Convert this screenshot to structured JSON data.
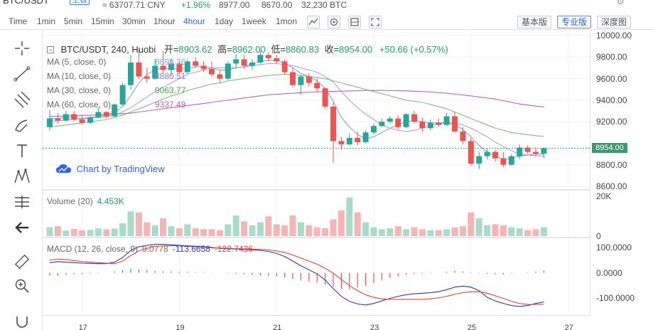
{
  "ticker": {
    "pair": "BTC/USDT",
    "badge": "主板",
    "cny": "≈ 63707.71 CNY",
    "change": "+1.96%",
    "high": "8977.00",
    "low": "8670.00",
    "volume": "32,230 BTC"
  },
  "toolbar": {
    "timeframes": [
      {
        "label": "Time",
        "active": false
      },
      {
        "label": "1min",
        "active": false
      },
      {
        "label": "5min",
        "active": false
      },
      {
        "label": "15min",
        "active": false
      },
      {
        "label": "30min",
        "active": false
      },
      {
        "label": "1hour",
        "active": false
      },
      {
        "label": "4hour",
        "active": true
      },
      {
        "label": "1day",
        "active": false
      },
      {
        "label": "1week",
        "active": false
      },
      {
        "label": "1mon",
        "active": false
      }
    ],
    "views": [
      {
        "label": "基本版",
        "active": false
      },
      {
        "label": "专业版",
        "active": true
      },
      {
        "label": "深度图",
        "active": false
      }
    ]
  },
  "legend": {
    "symbol": "BTC/USDT, 240, Huobi",
    "open_label": "开=",
    "open": "8903.62",
    "high_label": "高=",
    "high": "8962.00",
    "low_label": "低=",
    "low": "8860.83",
    "close_label": "收=",
    "close": "8954.00",
    "change": "+50.66 (+0.57%)",
    "ma": [
      {
        "label": "MA (5, close, 0)",
        "value": "8898.26"
      },
      {
        "label": "MA (10, close, 0)",
        "value": "8880.51"
      },
      {
        "label": "MA (30, close, 0)",
        "value": "9063.77"
      },
      {
        "label": "MA (60, close, 0)",
        "value": "9337.49"
      }
    ],
    "watermark": "Chart by TradingView",
    "volume_label": "Volume (20)",
    "volume_value": "4.453K",
    "macd_label": "MACD (12, 26, close, 9)",
    "macd_hist": "9.0778",
    "macd_line": "-113.6658",
    "macd_signal": "-122.7436"
  },
  "colors": {
    "up": "#26a69a",
    "down": "#ef5350",
    "up_vol": "#a8dcc8",
    "down_vol": "#f5b5b3",
    "ma5": "#8aa0d8",
    "ma10": "#b39ddb",
    "ma30": "#7cc07a",
    "ma60": "#c062b4",
    "macd": "#2b3ab8",
    "signal": "#e0463b",
    "accent": "#2962ff"
  },
  "chart_data": {
    "type": "candlestick",
    "price_axis": [
      "10000.00",
      "9800.00",
      "9600.00",
      "9400.00",
      "9200.00",
      "8800.00",
      "8600.00"
    ],
    "last_price": "8954.00",
    "ylim": [
      8580,
      10020
    ],
    "volume_axis": [
      "20K",
      "0"
    ],
    "macd_axis": [
      "100.0000",
      "0.0000",
      "-100.0000"
    ],
    "macd_ylim": [
      -160,
      130
    ],
    "x_labels": [
      "17",
      "19",
      "21",
      "23",
      "25",
      "27"
    ],
    "x_label_index": [
      4,
      16,
      28,
      40,
      52,
      64
    ],
    "candles": [
      [
        9150,
        9310,
        9120,
        9230
      ],
      [
        9230,
        9280,
        9180,
        9210
      ],
      [
        9210,
        9300,
        9200,
        9270
      ],
      [
        9270,
        9300,
        9210,
        9220
      ],
      [
        9220,
        9260,
        9170,
        9190
      ],
      [
        9190,
        9250,
        9180,
        9240
      ],
      [
        9240,
        9330,
        9230,
        9290
      ],
      [
        9290,
        9300,
        9230,
        9250
      ],
      [
        9250,
        9370,
        9240,
        9360
      ],
      [
        9360,
        9560,
        9350,
        9540
      ],
      [
        9540,
        9820,
        9500,
        9750
      ],
      [
        9750,
        9870,
        9600,
        9620
      ],
      [
        9620,
        9700,
        9560,
        9600
      ],
      [
        9600,
        9780,
        9590,
        9720
      ],
      [
        9720,
        9860,
        9650,
        9680
      ],
      [
        9680,
        9780,
        9620,
        9740
      ],
      [
        9740,
        9760,
        9640,
        9660
      ],
      [
        9660,
        9780,
        9640,
        9760
      ],
      [
        9760,
        9800,
        9700,
        9720
      ],
      [
        9720,
        9760,
        9660,
        9690
      ],
      [
        9690,
        9760,
        9620,
        9640
      ],
      [
        9640,
        9680,
        9560,
        9600
      ],
      [
        9600,
        9760,
        9590,
        9740
      ],
      [
        9740,
        9830,
        9700,
        9780
      ],
      [
        9780,
        9820,
        9690,
        9720
      ],
      [
        9720,
        9780,
        9680,
        9750
      ],
      [
        9750,
        9860,
        9740,
        9820
      ],
      [
        9820,
        9850,
        9760,
        9790
      ],
      [
        9790,
        9820,
        9740,
        9760
      ],
      [
        9760,
        9780,
        9640,
        9660
      ],
      [
        9660,
        9700,
        9520,
        9540
      ],
      [
        9540,
        9640,
        9450,
        9620
      ],
      [
        9620,
        9650,
        9530,
        9560
      ],
      [
        9560,
        9600,
        9480,
        9510
      ],
      [
        9510,
        9520,
        9320,
        9340
      ],
      [
        9340,
        9380,
        8820,
        9020
      ],
      [
        9020,
        9060,
        8940,
        8990
      ],
      [
        8990,
        9090,
        8980,
        9050
      ],
      [
        9050,
        9110,
        8980,
        9010
      ],
      [
        9010,
        9120,
        9000,
        9100
      ],
      [
        9100,
        9180,
        9080,
        9160
      ],
      [
        9160,
        9230,
        9150,
        9200
      ],
      [
        9200,
        9250,
        9180,
        9230
      ],
      [
        9230,
        9260,
        9130,
        9150
      ],
      [
        9150,
        9280,
        9140,
        9270
      ],
      [
        9270,
        9300,
        9180,
        9200
      ],
      [
        9200,
        9240,
        9110,
        9140
      ],
      [
        9140,
        9220,
        9120,
        9190
      ],
      [
        9190,
        9230,
        9150,
        9170
      ],
      [
        9170,
        9280,
        9160,
        9250
      ],
      [
        9250,
        9290,
        9100,
        9110
      ],
      [
        9110,
        9150,
        8990,
        9020
      ],
      [
        9020,
        9050,
        8790,
        8810
      ],
      [
        8810,
        8920,
        8760,
        8880
      ],
      [
        8880,
        8950,
        8850,
        8920
      ],
      [
        8920,
        8940,
        8830,
        8860
      ],
      [
        8860,
        8920,
        8780,
        8800
      ],
      [
        8800,
        8900,
        8790,
        8880
      ],
      [
        8880,
        8990,
        8850,
        8960
      ],
      [
        8960,
        8980,
        8900,
        8920
      ],
      [
        8920,
        8960,
        8880,
        8903
      ],
      [
        8903,
        8962,
        8860,
        8954
      ]
    ],
    "ma": {
      "ma5": [
        9230,
        9230,
        9240,
        9240,
        9230,
        9240,
        9250,
        9260,
        9290,
        9340,
        9440,
        9560,
        9640,
        9680,
        9700,
        9690,
        9690,
        9700,
        9710,
        9710,
        9700,
        9680,
        9680,
        9700,
        9710,
        9740,
        9760,
        9770,
        9770,
        9750,
        9700,
        9650,
        9620,
        9580,
        9510,
        9390,
        9240,
        9150,
        9080,
        9040,
        9060,
        9100,
        9140,
        9170,
        9200,
        9210,
        9200,
        9190,
        9190,
        9190,
        9170,
        9130,
        9060,
        8980,
        8920,
        8880,
        8850,
        8860,
        8880,
        8890,
        8900,
        8898
      ],
      "ma10": [
        9200,
        9210,
        9215,
        9220,
        9225,
        9230,
        9240,
        9245,
        9260,
        9290,
        9330,
        9380,
        9430,
        9480,
        9520,
        9560,
        9600,
        9640,
        9660,
        9680,
        9700,
        9700,
        9700,
        9700,
        9710,
        9720,
        9730,
        9740,
        9740,
        9730,
        9720,
        9700,
        9680,
        9660,
        9620,
        9570,
        9480,
        9400,
        9330,
        9270,
        9220,
        9170,
        9140,
        9120,
        9110,
        9120,
        9140,
        9160,
        9180,
        9190,
        9190,
        9170,
        9140,
        9100,
        9060,
        9010,
        8970,
        8930,
        8900,
        8890,
        8885,
        8880
      ],
      "ma30": [
        9150,
        9160,
        9170,
        9180,
        9190,
        9200,
        9210,
        9220,
        9240,
        9260,
        9290,
        9320,
        9350,
        9380,
        9410,
        9440,
        9460,
        9490,
        9510,
        9530,
        9550,
        9560,
        9580,
        9590,
        9600,
        9610,
        9620,
        9630,
        9635,
        9640,
        9640,
        9630,
        9620,
        9610,
        9600,
        9580,
        9560,
        9540,
        9520,
        9500,
        9480,
        9460,
        9440,
        9420,
        9400,
        9390,
        9380,
        9360,
        9340,
        9320,
        9290,
        9260,
        9230,
        9200,
        9170,
        9140,
        9120,
        9100,
        9090,
        9080,
        9070,
        9064
      ],
      "ma60": [
        9250,
        9250,
        9255,
        9255,
        9260,
        9260,
        9265,
        9265,
        9270,
        9275,
        9280,
        9290,
        9300,
        9310,
        9320,
        9330,
        9340,
        9350,
        9360,
        9370,
        9380,
        9390,
        9400,
        9410,
        9420,
        9430,
        9440,
        9450,
        9455,
        9460,
        9465,
        9470,
        9475,
        9478,
        9480,
        9482,
        9484,
        9486,
        9488,
        9490,
        9490,
        9490,
        9489,
        9488,
        9486,
        9484,
        9480,
        9476,
        9470,
        9464,
        9456,
        9448,
        9440,
        9430,
        9420,
        9410,
        9395,
        9380,
        9365,
        9355,
        9345,
        9337
      ]
    },
    "volume": [
      4.5,
      5.0,
      2.8,
      3.6,
      2.9,
      3.1,
      4.0,
      3.4,
      3.8,
      6.5,
      12.5,
      12.0,
      7.0,
      5.5,
      9.0,
      5.0,
      4.0,
      6.0,
      4.0,
      3.5,
      3.5,
      3.0,
      6.0,
      10.5,
      7.5,
      5.5,
      7.0,
      10.0,
      6.0,
      5.5,
      10.5,
      7.0,
      5.5,
      4.5,
      4.0,
      8.5,
      13.0,
      19.5,
      12.0,
      7.0,
      4.5,
      3.5,
      4.0,
      5.0,
      3.5,
      4.5,
      3.5,
      3.0,
      3.0,
      3.5,
      4.5,
      5.0,
      12.0,
      9.0,
      5.5,
      6.0,
      5.5,
      4.5,
      4.0,
      3.0,
      3.5,
      4.5
    ],
    "volume_ylim": [
      0,
      22
    ],
    "macd_hist": [
      -10,
      -12,
      -8,
      -6,
      -5,
      -3,
      -2,
      0,
      6,
      12,
      16,
      14,
      10,
      8,
      6,
      6,
      4,
      4,
      3,
      2,
      1,
      0,
      -2,
      -4,
      -6,
      -8,
      -10,
      -12,
      -14,
      -18,
      -24,
      -30,
      -35,
      -38,
      -46,
      -55,
      -64,
      -65,
      -58,
      -50,
      -40,
      -30,
      -20,
      -14,
      -8,
      -5,
      -3,
      -2,
      0,
      4,
      8,
      6,
      2,
      -2,
      -4,
      -6,
      -6,
      -3,
      0,
      2,
      5,
      9
    ],
    "macd_line": [
      40,
      44,
      42,
      40,
      38,
      37,
      36,
      36,
      42,
      60,
      88,
      102,
      108,
      112,
      112,
      110,
      108,
      106,
      104,
      102,
      100,
      96,
      94,
      94,
      92,
      90,
      88,
      84,
      76,
      64,
      46,
      28,
      12,
      -4,
      -28,
      -62,
      -92,
      -112,
      -122,
      -126,
      -120,
      -110,
      -100,
      -92,
      -86,
      -82,
      -80,
      -78,
      -74,
      -66,
      -56,
      -52,
      -56,
      -70,
      -96,
      -110,
      -120,
      -128,
      -132,
      -128,
      -120,
      -114
    ],
    "macd_signal": [
      50,
      54,
      52,
      48,
      44,
      42,
      40,
      38,
      36,
      46,
      68,
      86,
      96,
      104,
      106,
      106,
      106,
      104,
      102,
      100,
      98,
      97,
      96,
      95,
      94,
      93,
      92,
      90,
      86,
      80,
      70,
      58,
      46,
      34,
      18,
      -2,
      -26,
      -50,
      -70,
      -86,
      -96,
      -102,
      -104,
      -104,
      -104,
      -104,
      -104,
      -102,
      -98,
      -92,
      -84,
      -78,
      -74,
      -74,
      -80,
      -90,
      -100,
      -112,
      -120,
      -124,
      -124,
      -123
    ]
  }
}
